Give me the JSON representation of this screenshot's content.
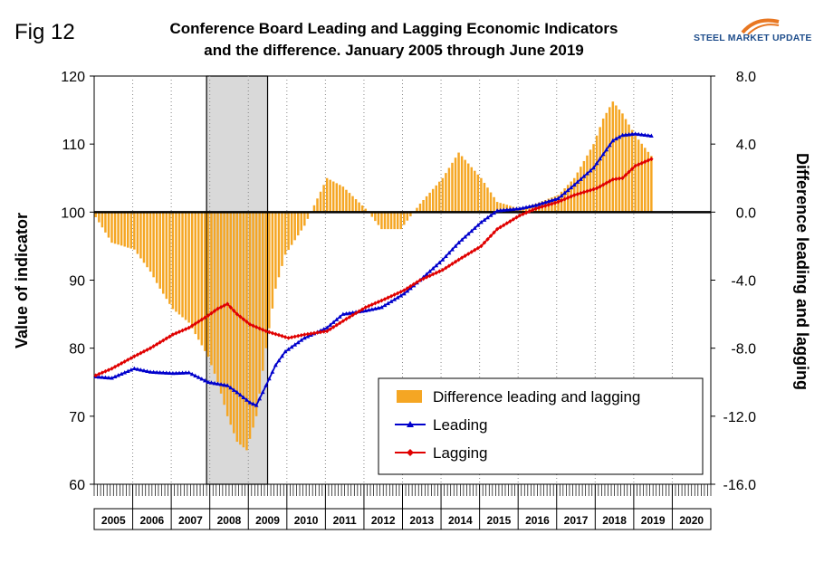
{
  "fig_label": "Fig 12",
  "title_line1": "Conference Board Leading and Lagging Economic Indicators",
  "title_line2": "and the difference. January 2005 through June 2019",
  "logo": {
    "steel": "STEEL",
    "rest": "MARKET UPDATE",
    "icon": "swoosh-logo-icon",
    "color": "#1f4e8c",
    "accent": "#e87722"
  },
  "chart_data": {
    "type": "bar+line",
    "y_left": {
      "label": "Value of indicator",
      "lim": [
        60,
        120
      ],
      "ticks": [
        60,
        70,
        80,
        90,
        100,
        110,
        120
      ]
    },
    "y_right": {
      "label": "Difference leading and lagging",
      "lim": [
        -16,
        8
      ],
      "ticks": [
        "8.0",
        "4.0",
        "0.0",
        "-4.0",
        "-8.0",
        "-12.0",
        "-16.0"
      ]
    },
    "x_years": [
      "2005",
      "2006",
      "2007",
      "2008",
      "2009",
      "2010",
      "2011",
      "2012",
      "2013",
      "2014",
      "2015",
      "2016",
      "2017",
      "2018",
      "2019",
      "2020"
    ],
    "x_range": [
      "2005-01",
      "2020-12"
    ],
    "shaded_recession": {
      "start": "2007-12",
      "end": "2009-06"
    },
    "zero_line_value": 0,
    "colors": {
      "difference": "#f5a623",
      "leading": "#0000cc",
      "lagging": "#e00000",
      "recession": "#d9d9d9"
    },
    "legend": {
      "position": "bottom-right",
      "items": [
        "Difference leading and lagging",
        "Leading",
        "Lagging"
      ]
    },
    "series": [
      {
        "name": "Leading",
        "anchors": [
          [
            "2005-01",
            75.8
          ],
          [
            "2005-06",
            75.6
          ],
          [
            "2006-01",
            77.0
          ],
          [
            "2006-06",
            76.5
          ],
          [
            "2007-01",
            76.3
          ],
          [
            "2007-06",
            76.4
          ],
          [
            "2007-12",
            75.0
          ],
          [
            "2008-06",
            74.5
          ],
          [
            "2008-09",
            73.5
          ],
          [
            "2009-01",
            72.0
          ],
          [
            "2009-03",
            71.6
          ],
          [
            "2009-06",
            74.5
          ],
          [
            "2009-09",
            77.5
          ],
          [
            "2009-12",
            79.5
          ],
          [
            "2010-06",
            81.5
          ],
          [
            "2011-01",
            83.0
          ],
          [
            "2011-06",
            85.0
          ],
          [
            "2012-01",
            85.5
          ],
          [
            "2012-06",
            86.0
          ],
          [
            "2013-01",
            88.0
          ],
          [
            "2013-06",
            90.0
          ],
          [
            "2014-01",
            93.0
          ],
          [
            "2014-06",
            95.5
          ],
          [
            "2015-01",
            98.5
          ],
          [
            "2015-06",
            100.2
          ],
          [
            "2016-01",
            100.5
          ],
          [
            "2016-06",
            101.0
          ],
          [
            "2017-01",
            102.0
          ],
          [
            "2017-06",
            104.0
          ],
          [
            "2017-12",
            106.5
          ],
          [
            "2018-06",
            110.5
          ],
          [
            "2018-09",
            111.3
          ],
          [
            "2019-01",
            111.5
          ],
          [
            "2019-06",
            111.2
          ]
        ]
      },
      {
        "name": "Lagging",
        "anchors": [
          [
            "2005-01",
            76.0
          ],
          [
            "2005-06",
            77.0
          ],
          [
            "2006-01",
            78.8
          ],
          [
            "2006-06",
            80.0
          ],
          [
            "2007-01",
            82.0
          ],
          [
            "2007-06",
            83.0
          ],
          [
            "2007-12",
            84.8
          ],
          [
            "2008-03",
            85.8
          ],
          [
            "2008-06",
            86.5
          ],
          [
            "2008-09",
            85.0
          ],
          [
            "2009-01",
            83.5
          ],
          [
            "2009-06",
            82.5
          ],
          [
            "2010-01",
            81.5
          ],
          [
            "2010-06",
            82.0
          ],
          [
            "2011-01",
            82.5
          ],
          [
            "2011-06",
            84.0
          ],
          [
            "2012-01",
            86.0
          ],
          [
            "2012-06",
            87.0
          ],
          [
            "2013-01",
            88.5
          ],
          [
            "2013-06",
            90.0
          ],
          [
            "2014-01",
            91.5
          ],
          [
            "2014-06",
            93.0
          ],
          [
            "2015-01",
            95.0
          ],
          [
            "2015-06",
            97.5
          ],
          [
            "2016-01",
            99.5
          ],
          [
            "2016-06",
            100.5
          ],
          [
            "2017-01",
            101.5
          ],
          [
            "2017-06",
            102.5
          ],
          [
            "2018-01",
            103.5
          ],
          [
            "2018-06",
            104.8
          ],
          [
            "2018-09",
            105.0
          ],
          [
            "2019-01",
            106.8
          ],
          [
            "2019-06",
            107.8
          ]
        ]
      },
      {
        "name": "Difference leading and lagging",
        "anchors": [
          [
            "2005-01",
            -0.3
          ],
          [
            "2005-06",
            -1.8
          ],
          [
            "2006-01",
            -2.2
          ],
          [
            "2006-06",
            -3.5
          ],
          [
            "2006-09",
            -4.5
          ],
          [
            "2007-01",
            -5.7
          ],
          [
            "2007-06",
            -6.5
          ],
          [
            "2007-09",
            -7.5
          ],
          [
            "2007-12",
            -8.5
          ],
          [
            "2008-03",
            -10.0
          ],
          [
            "2008-06",
            -12.0
          ],
          [
            "2008-09",
            -13.5
          ],
          [
            "2008-12",
            -14.0
          ],
          [
            "2009-03",
            -12.0
          ],
          [
            "2009-06",
            -8.0
          ],
          [
            "2009-09",
            -4.5
          ],
          [
            "2009-12",
            -2.5
          ],
          [
            "2010-06",
            -0.8
          ],
          [
            "2011-01",
            2.0
          ],
          [
            "2011-06",
            1.5
          ],
          [
            "2012-01",
            0.2
          ],
          [
            "2012-06",
            -1.0
          ],
          [
            "2012-12",
            -1.0
          ],
          [
            "2013-06",
            0.5
          ],
          [
            "2014-01",
            2.0
          ],
          [
            "2014-06",
            3.5
          ],
          [
            "2015-01",
            2.0
          ],
          [
            "2015-06",
            0.6
          ],
          [
            "2016-01",
            0.2
          ],
          [
            "2016-06",
            0.5
          ],
          [
            "2017-01",
            1.0
          ],
          [
            "2017-06",
            2.0
          ],
          [
            "2017-12",
            4.0
          ],
          [
            "2018-03",
            5.5
          ],
          [
            "2018-06",
            6.5
          ],
          [
            "2018-09",
            5.8
          ],
          [
            "2019-01",
            4.5
          ],
          [
            "2019-06",
            3.3
          ]
        ]
      }
    ]
  }
}
